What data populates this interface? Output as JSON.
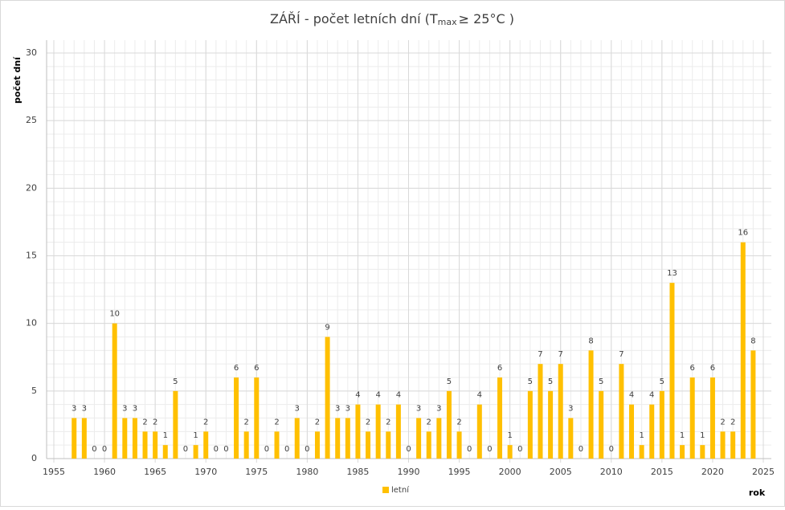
{
  "chart_data": {
    "type": "bar",
    "title": {
      "main": "ZÁŘÍ - počet letních dní (T",
      "sub": "max",
      "end": "≥ 25°C )"
    },
    "x_label": "rok",
    "y_label": "počet dní",
    "x": [
      1957,
      1958,
      1959,
      1960,
      1961,
      1962,
      1963,
      1964,
      1965,
      1966,
      1967,
      1968,
      1969,
      1970,
      1971,
      1972,
      1973,
      1974,
      1975,
      1976,
      1977,
      1978,
      1979,
      1980,
      1981,
      1982,
      1983,
      1984,
      1985,
      1986,
      1987,
      1988,
      1989,
      1990,
      1991,
      1992,
      1993,
      1994,
      1995,
      1996,
      1997,
      1998,
      1999,
      2000,
      2001,
      2002,
      2003,
      2004,
      2005,
      2006,
      2007,
      2008,
      2009,
      2010,
      2011,
      2012,
      2013,
      2014,
      2015,
      2016,
      2017,
      2018,
      2019,
      2020,
      2021,
      2022,
      2023,
      2024
    ],
    "series": [
      {
        "name": "letní",
        "color": "#ffc000",
        "values": [
          3,
          3,
          0,
          0,
          10,
          3,
          3,
          2,
          2,
          1,
          5,
          0,
          1,
          2,
          0,
          0,
          6,
          2,
          6,
          0,
          2,
          0,
          3,
          0,
          2,
          9,
          3,
          3,
          4,
          2,
          4,
          2,
          4,
          0,
          3,
          2,
          3,
          5,
          2,
          0,
          4,
          0,
          6,
          1,
          0,
          5,
          7,
          5,
          7,
          3,
          0,
          8,
          5,
          0,
          7,
          4,
          1,
          4,
          5,
          13,
          1,
          6,
          1,
          6,
          2,
          2,
          16,
          8
        ]
      }
    ],
    "xlim": [
      1955,
      2025
    ],
    "xticks": [
      1955,
      1960,
      1965,
      1970,
      1975,
      1980,
      1985,
      1990,
      1995,
      2000,
      2005,
      2010,
      2015,
      2020,
      2025
    ],
    "ylim": [
      0,
      30
    ],
    "yticks": [
      0,
      5,
      10,
      15,
      20,
      25,
      30
    ],
    "grid": true,
    "legend": "bottom"
  }
}
